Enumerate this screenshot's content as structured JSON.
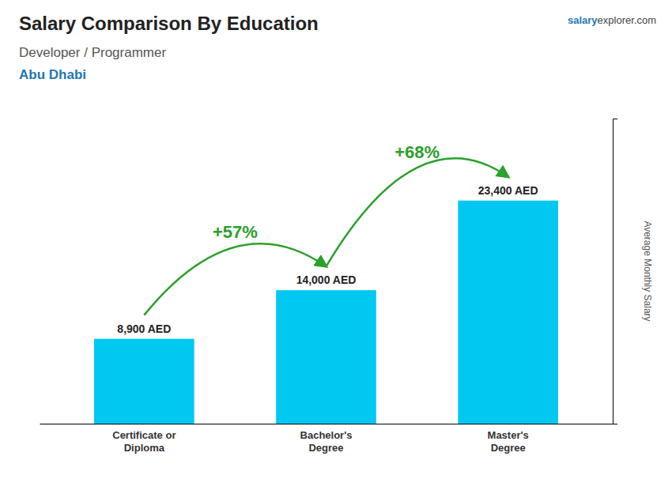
{
  "chart_data": {
    "type": "bar",
    "title": "Salary Comparison By Education",
    "subtitle": [
      "Developer / Programmer",
      "Abu Dhabi"
    ],
    "brand": [
      "salary",
      "explorer.com"
    ],
    "ylabel": "Average Monthly Salary",
    "categories": [
      "Certificate or\nDiploma",
      "Bachelor's\nDegree",
      "Master's\nDegree"
    ],
    "values": [
      8900,
      14000,
      23400
    ],
    "value_labels": [
      "8,900 AED",
      "14,000 AED",
      "23,400 AED"
    ],
    "data_labels": true,
    "color": "#00C8F0",
    "annotations": [
      "+57%",
      "+68%"
    ],
    "ylim": [
      0,
      32000
    ],
    "yticks": [],
    "tick_labels": "x"
  }
}
